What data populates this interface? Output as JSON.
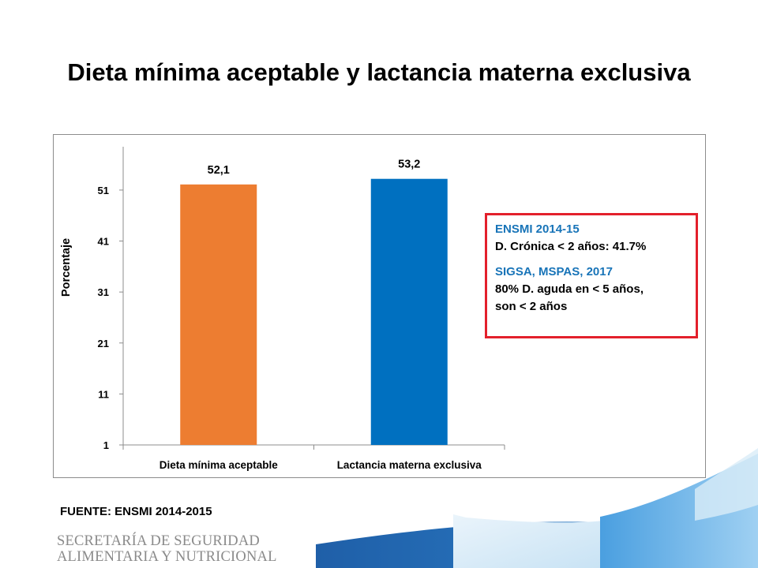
{
  "title": "Dieta mínima aceptable y lactancia materna exclusiva",
  "chart_data": {
    "type": "bar",
    "categories": [
      "Dieta mínima aceptable",
      "Lactancia materna exclusiva"
    ],
    "values": [
      52.1,
      53.2
    ],
    "value_labels": [
      "52,1",
      "53,2"
    ],
    "bar_colors": [
      "#ed7d31",
      "#0070c0"
    ],
    "ylabel": "Porcentaje",
    "yticks": [
      1,
      11,
      21,
      31,
      41,
      51
    ],
    "ylim": [
      1,
      59.5
    ],
    "grid": false,
    "legend": "none"
  },
  "annotation": {
    "source1": "ENSMI 2014-15",
    "line1": "D. Crónica < 2 años: 41.7%",
    "source2": "SIGSA, MSPAS, 2017",
    "line2a": "80% D. aguda en < 5 años,",
    "line2b": "son < 2 años"
  },
  "source_note": "FUENTE: ENSMI 2014-2015",
  "logo": {
    "line1": "SECRETARÍA DE SEGURIDAD",
    "line2": "ALIMENTARIA Y NUTRICIONAL"
  },
  "colors": {
    "accent_blue": "#1874b8",
    "annotation_border": "#e3202b"
  }
}
